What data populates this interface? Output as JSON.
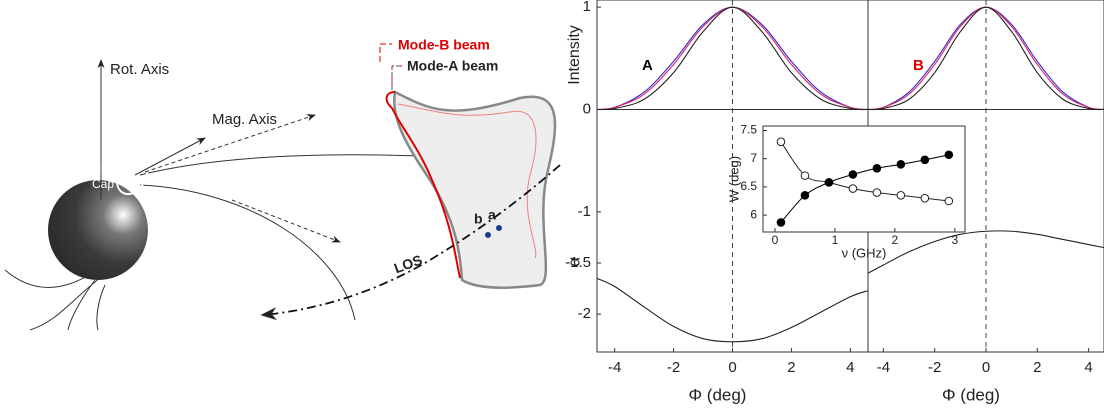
{
  "diagram": {
    "rot_axis": "Rot. Axis",
    "mag_axis": "Mag. Axis",
    "polar_cap": [
      "Polar",
      "Cap"
    ],
    "mode_b": "Mode-B beam",
    "mode_a": "Mode-A beam",
    "point_b": "b",
    "point_a": "a",
    "los": "LOS"
  },
  "chart_data": [
    {
      "type": "line",
      "panel_label": "A",
      "panel_label_color": "#000000",
      "ylabel": "Intensity",
      "ylabel_lower": "α",
      "xlabel": "Φ (deg)",
      "x": [
        -4.6,
        -4,
        -3,
        -2,
        -1,
        0,
        1,
        2,
        3,
        4,
        4.6
      ],
      "series": [
        {
          "color": "#2b2bd8",
          "values": [
            0,
            0.02,
            0.17,
            0.47,
            0.83,
            1,
            0.83,
            0.47,
            0.17,
            0.02,
            0
          ]
        },
        {
          "color": "#e0205a",
          "values": [
            0,
            0.02,
            0.15,
            0.44,
            0.81,
            1,
            0.81,
            0.44,
            0.15,
            0.02,
            0
          ]
        },
        {
          "color": "#222222",
          "values": [
            0,
            0.01,
            0.1,
            0.36,
            0.76,
            1,
            0.76,
            0.36,
            0.1,
            0.01,
            0
          ]
        },
        {
          "color": "#222222",
          "values": [
            -1.65,
            -1.73,
            -1.93,
            -2.12,
            -2.24,
            -2.27,
            -2.24,
            -2.13,
            -1.98,
            -1.83,
            -1.77
          ]
        }
      ],
      "xlim": [
        -4.6,
        4.6
      ],
      "xticks": [
        -4,
        -2,
        0,
        2,
        4
      ],
      "ylim": [
        -2.37,
        1.07
      ],
      "yticks": [
        -2,
        -1.5,
        -1,
        0,
        1
      ],
      "vline": 0,
      "hline": 0
    },
    {
      "type": "line",
      "panel_label": "B",
      "panel_label_color": "#e00000",
      "xlabel": "Φ (deg)",
      "x": [
        -4.6,
        -4,
        -3,
        -2,
        -1,
        0,
        1,
        2,
        3,
        4,
        4.6
      ],
      "series": [
        {
          "color": "#2b2bd8",
          "values": [
            0,
            0.02,
            0.17,
            0.47,
            0.83,
            1,
            0.83,
            0.47,
            0.17,
            0.02,
            0
          ]
        },
        {
          "color": "#e0205a",
          "values": [
            0,
            0.02,
            0.15,
            0.44,
            0.81,
            1,
            0.81,
            0.44,
            0.15,
            0.02,
            0
          ]
        },
        {
          "color": "#222222",
          "values": [
            0,
            0.01,
            0.1,
            0.36,
            0.76,
            1,
            0.76,
            0.36,
            0.1,
            0.01,
            0
          ]
        },
        {
          "color": "#222222",
          "values": [
            -1.6,
            -1.52,
            -1.39,
            -1.29,
            -1.22,
            -1.19,
            -1.19,
            -1.22,
            -1.27,
            -1.32,
            -1.35
          ]
        }
      ],
      "xlim": [
        -4.6,
        4.6
      ],
      "xticks": [
        -4,
        -2,
        0,
        2,
        4
      ],
      "ylim": [
        -2.37,
        1.07
      ],
      "vline": 0,
      "hline": 0
    },
    {
      "type": "scatter",
      "xlabel": "ν (GHz)",
      "ylabel": "W (deg)",
      "x": [
        0.1,
        0.5,
        0.9,
        1.3,
        1.7,
        2.1,
        2.5,
        2.9
      ],
      "series": [
        {
          "color": "#222222",
          "marker": "open",
          "values": [
            7.3,
            6.7,
            6.58,
            6.47,
            6.4,
            6.35,
            6.3,
            6.25
          ]
        },
        {
          "color": "#000000",
          "marker": "filled",
          "values": [
            5.87,
            6.35,
            6.58,
            6.72,
            6.83,
            6.9,
            6.98,
            7.07
          ]
        }
      ],
      "xlim": [
        -0.2,
        3.17
      ],
      "xticks": [
        0,
        1,
        2,
        3
      ],
      "ylim": [
        5.7,
        7.58
      ],
      "yticks": [
        6,
        6.5,
        7,
        7.5
      ]
    }
  ]
}
